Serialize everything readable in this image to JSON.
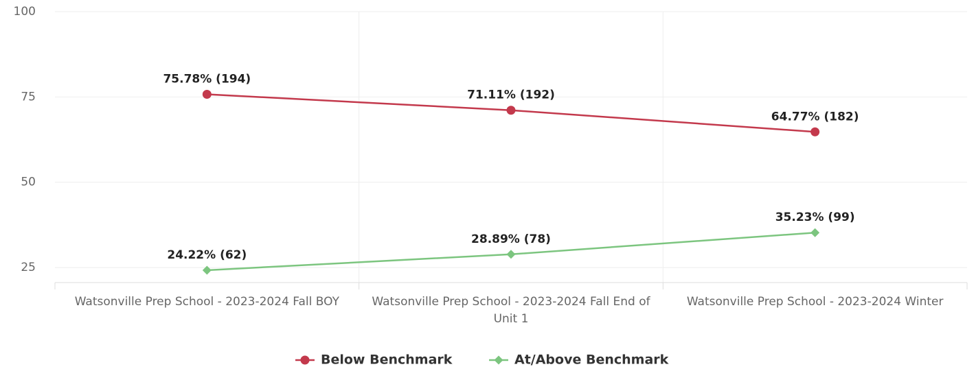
{
  "chart_data": {
    "type": "line",
    "categories": [
      "Watsonville Prep School - 2023-2024 Fall BOY",
      "Watsonville Prep School - 2023-2024 Fall End of Unit 1",
      "Watsonville Prep School - 2023-2024 Winter"
    ],
    "series": [
      {
        "name": "Below Benchmark",
        "color": "#c3394c",
        "marker": "circle",
        "values": [
          75.78,
          71.11,
          64.77
        ],
        "value_labels": [
          "75.78% (194)",
          "71.11% (192)",
          "64.77% (182)"
        ]
      },
      {
        "name": "At/Above Benchmark",
        "color": "#7cc57f",
        "marker": "diamond",
        "values": [
          24.22,
          28.89,
          35.23
        ],
        "value_labels": [
          "24.22% (62)",
          "28.89% (78)",
          "35.23% (99)"
        ]
      }
    ],
    "ylim": [
      20.6,
      100
    ],
    "yticks": [
      25,
      50,
      75,
      100
    ],
    "grid": true,
    "legend": "bottom"
  }
}
